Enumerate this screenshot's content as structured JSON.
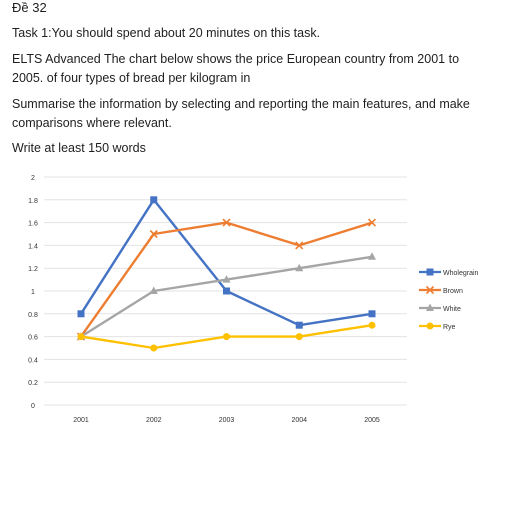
{
  "doc": {
    "heading": "Đề 32",
    "task_line": "Task 1:You should spend about 20 minutes on this task.",
    "prompt": "ELTS Advanced The chart below shows the price European country from 2001 to 2005. of four types of bread per kilogram in",
    "instruction": "Summarise the information by selecting and reporting the main features, and make comparisons where relevant.",
    "word_count": "Write at least 150 words"
  },
  "chart_data": {
    "type": "line",
    "categories": [
      "2001",
      "2002",
      "2003",
      "2004",
      "2005"
    ],
    "y_ticks": [
      "0",
      "0.2",
      "0.4",
      "0.6",
      "0.8",
      "1",
      "1.2",
      "1.4",
      "1.6",
      "1.8",
      "2"
    ],
    "ylim": [
      0,
      2
    ],
    "grid": true,
    "legend_position": "right",
    "series": [
      {
        "name": "Wholegrain",
        "color": "#4472c4",
        "marker": "square",
        "values": [
          0.8,
          1.8,
          1.0,
          0.7,
          0.8
        ]
      },
      {
        "name": "Brown",
        "color": "#ed7d31",
        "marker": "x",
        "values": [
          0.6,
          1.5,
          1.6,
          1.4,
          1.6
        ]
      },
      {
        "name": "White",
        "color": "#a5a5a5",
        "marker": "triangle",
        "values": [
          0.6,
          1.0,
          1.1,
          1.2,
          1.3
        ]
      },
      {
        "name": "Rye",
        "color": "#ffc000",
        "marker": "circle",
        "values": [
          0.6,
          0.5,
          0.6,
          0.6,
          0.7
        ]
      }
    ]
  }
}
